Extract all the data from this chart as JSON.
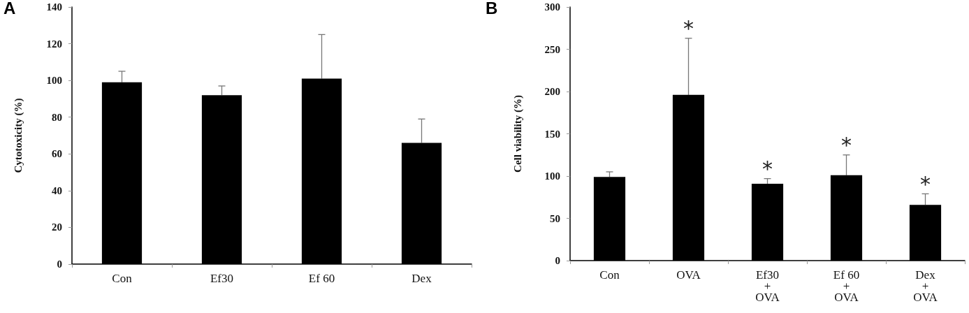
{
  "chart_data": [
    {
      "type": "bar",
      "title": "A",
      "ylabel": "Cytotoxicity (%)",
      "categories": [
        "Con",
        "Ef30",
        "Ef 60",
        "Dex"
      ],
      "values": [
        99,
        92,
        101,
        66
      ],
      "color": "#000000",
      "errors": [
        [
          99,
          105
        ],
        [
          92,
          97
        ],
        [
          101,
          125
        ],
        [
          66,
          79
        ]
      ],
      "ylim": [
        0,
        140
      ],
      "yticks": [
        0,
        20,
        40,
        60,
        80,
        100,
        120,
        140
      ],
      "grid": false
    },
    {
      "type": "bar",
      "title": "B",
      "ylabel": "Cell viability (%)",
      "categories": [
        "Con",
        "OVA",
        "Ef30\n+\nOVA",
        "Ef 60\n+\nOVA",
        "Dex\n+\nOVA"
      ],
      "values": [
        99,
        196,
        91,
        101,
        66
      ],
      "color": "#000000",
      "errors": [
        [
          99,
          105
        ],
        [
          196,
          263
        ],
        [
          91,
          97
        ],
        [
          101,
          125
        ],
        [
          66,
          79
        ]
      ],
      "ylim": [
        0,
        300
      ],
      "yticks": [
        0,
        50,
        100,
        150,
        200,
        250,
        300
      ],
      "grid": false,
      "annotations": [
        {
          "text": "*",
          "x": "OVA",
          "y": 263
        },
        {
          "text": "*",
          "x": "Ef30\n+\nOVA",
          "y": 97
        },
        {
          "text": "*",
          "x": "Ef 60\n+\nOVA",
          "y": 125
        },
        {
          "text": "*",
          "x": "Dex\n+\nOVA",
          "y": 79
        }
      ]
    }
  ]
}
